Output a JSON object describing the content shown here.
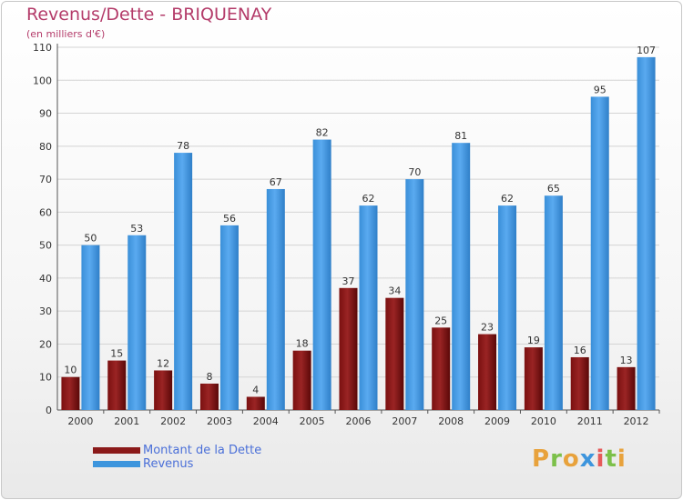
{
  "chart_data": {
    "type": "bar",
    "title": "Revenus/Dette - BRIQUENAY",
    "subtitle": "(en milliers d'€)",
    "categories": [
      "2000",
      "2001",
      "2002",
      "2003",
      "2004",
      "2005",
      "2006",
      "2007",
      "2008",
      "2009",
      "2010",
      "2011",
      "2012"
    ],
    "series": [
      {
        "name": "Montant de la Dette",
        "color": "#8b1a1a",
        "values": [
          10,
          15,
          12,
          8,
          4,
          18,
          37,
          34,
          25,
          23,
          19,
          16,
          13
        ]
      },
      {
        "name": "Revenus",
        "color": "#3d95dd",
        "values": [
          50,
          53,
          78,
          56,
          67,
          82,
          62,
          70,
          81,
          62,
          65,
          95,
          107
        ]
      }
    ],
    "ylim": [
      0,
      110
    ],
    "yticks": [
      0,
      10,
      20,
      30,
      40,
      50,
      60,
      70,
      80,
      90,
      100,
      110
    ],
    "grid": true,
    "legend": "bottom-left"
  },
  "logo": {
    "letters": [
      "P",
      "r",
      "o",
      "x",
      "i",
      "t",
      "i"
    ],
    "colors": [
      "#e8a23c",
      "#7cc04a",
      "#e8a23c",
      "#3d95dd",
      "#e65a5a",
      "#7cc04a",
      "#e8a23c"
    ]
  }
}
